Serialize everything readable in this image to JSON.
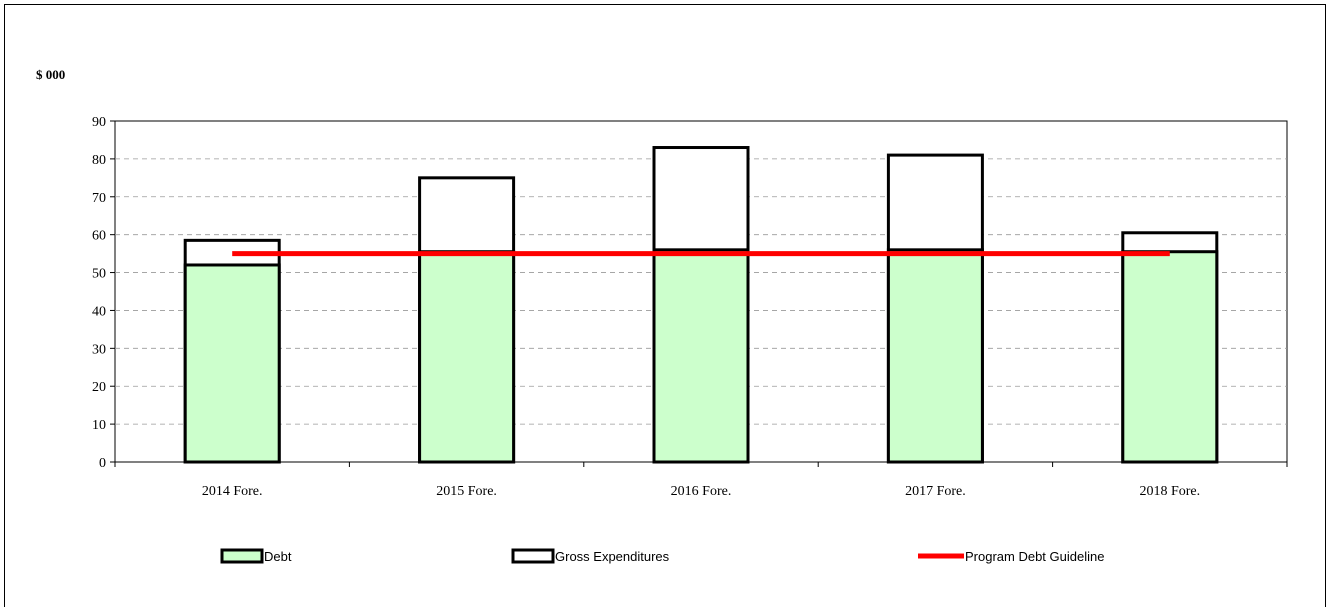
{
  "chart_data": {
    "type": "bar",
    "unit_label": "$ 000",
    "categories": [
      "2014 Fore.",
      "2015 Fore.",
      "2016 Fore.",
      "2017 Fore.",
      "2018 Fore."
    ],
    "series": [
      {
        "name": "Debt",
        "kind": "bar",
        "values": [
          52,
          55.5,
          56,
          56,
          55.5
        ],
        "color": "#ccffcc"
      },
      {
        "name": "Gross Expenditures",
        "kind": "bar",
        "values": [
          58.5,
          75,
          83,
          81,
          60.5
        ],
        "color": "#ffffff"
      },
      {
        "name": "Program Debt Guideline",
        "kind": "line",
        "values": [
          55,
          55,
          55,
          55,
          55
        ],
        "color": "#ff0000"
      }
    ],
    "ylim": [
      0,
      90
    ],
    "yticks": [
      "0",
      "10",
      "20",
      "30",
      "40",
      "50",
      "60",
      "70",
      "80",
      "90"
    ],
    "grid": true,
    "legend_placement": "bottom"
  }
}
